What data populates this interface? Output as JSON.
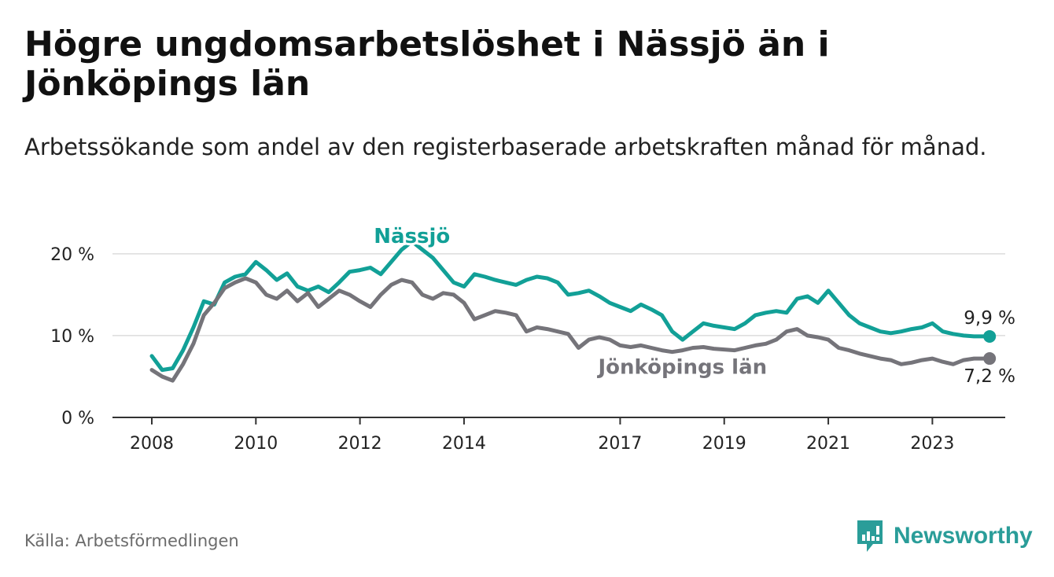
{
  "title": "Högre ungdomsarbetslöshet i Nässjö än i Jönköpings län",
  "subtitle": "Arbetssökande som andel av den registerbaserade arbetskraften månad för månad.",
  "source": "Källa: Arbetsförmedlingen",
  "brand": "Newsworthy",
  "colors": {
    "nassjo": "#12a097",
    "lan": "#75747a",
    "grid": "#dcdcdc",
    "axis": "#333333",
    "brand": "#2a9d99"
  },
  "chart_data": {
    "type": "line",
    "title": "Högre ungdomsarbetslöshet i Nässjö än i Jönköpings län",
    "ylim": [
      0,
      22
    ],
    "xlim": [
      2008,
      2024.4
    ],
    "y_ticks": [
      0,
      10,
      20
    ],
    "y_tick_labels": [
      "0 %",
      "10 %",
      "20 %"
    ],
    "x_ticks": [
      2008,
      2010,
      2012,
      2014,
      2017,
      2019,
      2021,
      2023
    ],
    "x_tick_labels": [
      "2008",
      "2010",
      "2012",
      "2014",
      "2017",
      "2019",
      "2021",
      "2023"
    ],
    "grid": true,
    "series": [
      {
        "name": "Nässjö",
        "label": "Nässjö",
        "end_label": "9,9 %",
        "x": [
          2008.0,
          2008.2,
          2008.4,
          2008.6,
          2008.8,
          2009.0,
          2009.2,
          2009.4,
          2009.6,
          2009.8,
          2010.0,
          2010.2,
          2010.4,
          2010.6,
          2010.8,
          2011.0,
          2011.2,
          2011.4,
          2011.6,
          2011.8,
          2012.0,
          2012.2,
          2012.4,
          2012.6,
          2012.8,
          2013.0,
          2013.2,
          2013.4,
          2013.6,
          2013.8,
          2014.0,
          2014.2,
          2014.4,
          2014.6,
          2014.8,
          2015.0,
          2015.2,
          2015.4,
          2015.6,
          2015.8,
          2016.0,
          2016.2,
          2016.4,
          2016.6,
          2016.8,
          2017.0,
          2017.2,
          2017.4,
          2017.6,
          2017.8,
          2018.0,
          2018.2,
          2018.4,
          2018.6,
          2018.8,
          2019.0,
          2019.2,
          2019.4,
          2019.6,
          2019.8,
          2020.0,
          2020.2,
          2020.4,
          2020.6,
          2020.8,
          2021.0,
          2021.2,
          2021.4,
          2021.6,
          2021.8,
          2022.0,
          2022.2,
          2022.4,
          2022.6,
          2022.8,
          2023.0,
          2023.2,
          2023.4,
          2023.6,
          2023.8,
          2024.0,
          2024.1
        ],
        "values": [
          7.5,
          5.8,
          6.0,
          8.2,
          11.0,
          14.2,
          13.8,
          16.5,
          17.2,
          17.5,
          19.0,
          18.0,
          16.8,
          17.6,
          16.0,
          15.5,
          16.0,
          15.3,
          16.5,
          17.8,
          18.0,
          18.3,
          17.5,
          19.0,
          20.5,
          21.5,
          20.5,
          19.5,
          18.0,
          16.5,
          16.0,
          17.5,
          17.2,
          16.8,
          16.5,
          16.2,
          16.8,
          17.2,
          17.0,
          16.5,
          15.0,
          15.2,
          15.5,
          14.8,
          14.0,
          13.5,
          13.0,
          13.8,
          13.2,
          12.5,
          10.5,
          9.5,
          10.5,
          11.5,
          11.2,
          11.0,
          10.8,
          11.5,
          12.5,
          12.8,
          13.0,
          12.8,
          14.5,
          14.8,
          14.0,
          15.5,
          14.0,
          12.5,
          11.5,
          11.0,
          10.5,
          10.3,
          10.5,
          10.8,
          11.0,
          11.5,
          10.5,
          10.2,
          10.0,
          9.9,
          9.9,
          9.9
        ]
      },
      {
        "name": "Jönköpings län",
        "label": "Jönköpings län",
        "end_label": "7,2 %",
        "x": [
          2008.0,
          2008.2,
          2008.4,
          2008.6,
          2008.8,
          2009.0,
          2009.2,
          2009.4,
          2009.6,
          2009.8,
          2010.0,
          2010.2,
          2010.4,
          2010.6,
          2010.8,
          2011.0,
          2011.2,
          2011.4,
          2011.6,
          2011.8,
          2012.0,
          2012.2,
          2012.4,
          2012.6,
          2012.8,
          2013.0,
          2013.2,
          2013.4,
          2013.6,
          2013.8,
          2014.0,
          2014.2,
          2014.4,
          2014.6,
          2014.8,
          2015.0,
          2015.2,
          2015.4,
          2015.6,
          2015.8,
          2016.0,
          2016.2,
          2016.4,
          2016.6,
          2016.8,
          2017.0,
          2017.2,
          2017.4,
          2017.6,
          2017.8,
          2018.0,
          2018.2,
          2018.4,
          2018.6,
          2018.8,
          2019.0,
          2019.2,
          2019.4,
          2019.6,
          2019.8,
          2020.0,
          2020.2,
          2020.4,
          2020.6,
          2020.8,
          2021.0,
          2021.2,
          2021.4,
          2021.6,
          2021.8,
          2022.0,
          2022.2,
          2022.4,
          2022.6,
          2022.8,
          2023.0,
          2023.2,
          2023.4,
          2023.6,
          2023.8,
          2024.0,
          2024.1
        ],
        "values": [
          5.8,
          5.0,
          4.5,
          6.5,
          9.0,
          12.5,
          14.0,
          15.8,
          16.5,
          17.0,
          16.5,
          15.0,
          14.5,
          15.5,
          14.2,
          15.2,
          13.5,
          14.5,
          15.5,
          15.0,
          14.2,
          13.5,
          15.0,
          16.2,
          16.8,
          16.5,
          15.0,
          14.5,
          15.2,
          15.0,
          14.0,
          12.0,
          12.5,
          13.0,
          12.8,
          12.5,
          10.5,
          11.0,
          10.8,
          10.5,
          10.2,
          8.5,
          9.5,
          9.8,
          9.5,
          8.8,
          8.6,
          8.8,
          8.5,
          8.2,
          8.0,
          8.2,
          8.5,
          8.6,
          8.4,
          8.3,
          8.2,
          8.5,
          8.8,
          9.0,
          9.5,
          10.5,
          10.8,
          10.0,
          9.8,
          9.5,
          8.5,
          8.2,
          7.8,
          7.5,
          7.2,
          7.0,
          6.5,
          6.7,
          7.0,
          7.2,
          6.8,
          6.5,
          7.0,
          7.2,
          7.2,
          7.2
        ]
      }
    ]
  }
}
